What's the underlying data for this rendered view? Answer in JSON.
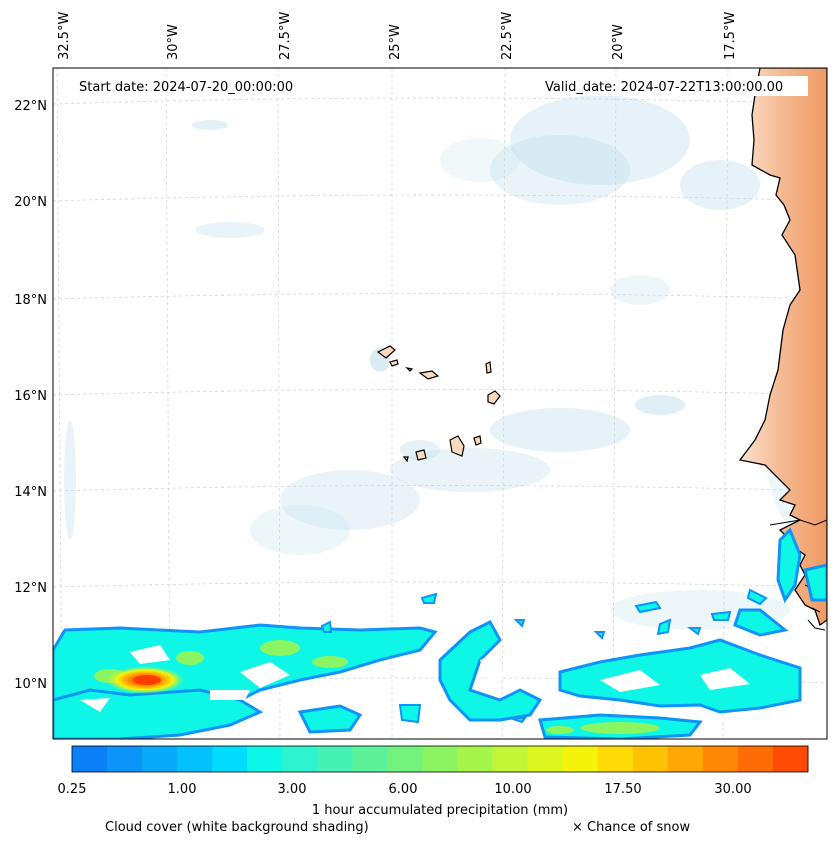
{
  "start_date": "Start date: 2024-07-20_00:00:00",
  "valid_date": "Valid_date: 2024-07-22T13:00:00.00",
  "lon_labels": [
    "32.5°W",
    "30°W",
    "27.5°W",
    "25°W",
    "22.5°W",
    "20°W",
    "17.5°W"
  ],
  "lat_labels": [
    "22°N",
    "20°N",
    "18°N",
    "16°N",
    "14°N",
    "12°N",
    "10°N"
  ],
  "colorbar": {
    "label": "1 hour accumulated precipitation (mm)",
    "tick_labels": [
      "0.25",
      "1.00",
      "3.00",
      "6.00",
      "10.00",
      "17.50",
      "30.00"
    ],
    "colors": [
      "#0a7ff7",
      "#0d94f8",
      "#08a9f9",
      "#05c1fb",
      "#00dcfb",
      "#0ef6e6",
      "#2ef3cf",
      "#45f1b5",
      "#5cf29a",
      "#73f37d",
      "#8bf463",
      "#a6f54b",
      "#c1f535",
      "#dcf71d",
      "#f4f40a",
      "#fedb04",
      "#fec104",
      "#fea604",
      "#fe8905",
      "#fe6c05",
      "#fe4a02"
    ]
  },
  "legend": {
    "cloud": "Cloud cover (white background shading)",
    "snow": "× Chance of snow"
  },
  "colors": {
    "land": "#f0a06a",
    "cloud": "#b8dbe8",
    "heavy_rain": "#ff3c00"
  }
}
